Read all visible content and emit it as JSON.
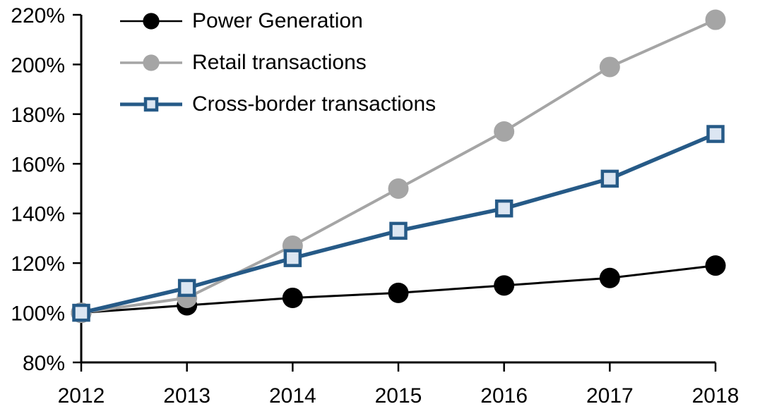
{
  "chart_data": {
    "type": "line",
    "title": "",
    "xlabel": "",
    "ylabel": "",
    "categories": [
      "2012",
      "2013",
      "2014",
      "2015",
      "2016",
      "2017",
      "2018"
    ],
    "ylim": [
      80,
      220
    ],
    "yticks": [
      80,
      100,
      120,
      140,
      160,
      180,
      200,
      220
    ],
    "ytick_labels": [
      "80%",
      "100%",
      "120%",
      "140%",
      "160%",
      "180%",
      "200%",
      "220%"
    ],
    "grid": false,
    "legend_position": "top-left",
    "axis_color": "#000000",
    "background": "#ffffff",
    "series": [
      {
        "name": "Power Generation",
        "values": [
          100,
          103,
          106,
          108,
          111,
          114,
          119
        ],
        "color": "#000000",
        "marker": "circle",
        "marker_fill": "#000000",
        "line_width": 3,
        "marker_size": 29
      },
      {
        "name": "Retail transactions",
        "values": [
          100,
          106,
          127,
          150,
          173,
          199,
          218
        ],
        "color": "#a5a5a5",
        "marker": "circle",
        "marker_fill": "#a5a5a5",
        "line_width": 4,
        "marker_size": 29
      },
      {
        "name": "Cross-border transactions",
        "values": [
          100,
          110,
          122,
          133,
          142,
          154,
          172
        ],
        "color": "#265a87",
        "marker": "square",
        "marker_fill": "#dce6f2",
        "line_width": 5.5,
        "marker_size": 25
      }
    ]
  }
}
